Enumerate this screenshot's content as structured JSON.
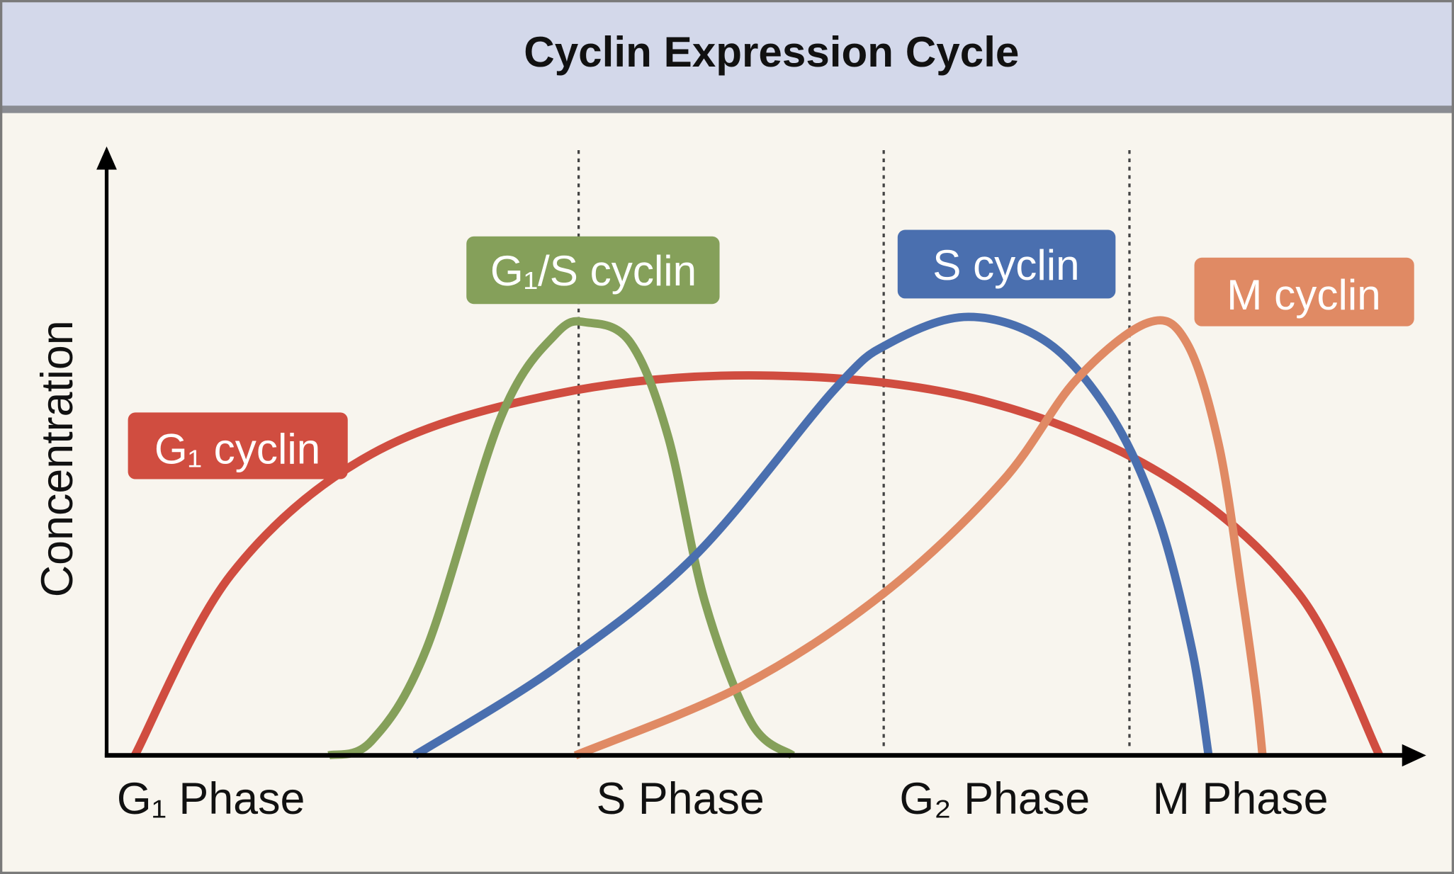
{
  "title": "Cyclin Expression Cycle",
  "colors": {
    "header_bg": "#d3d8ea",
    "body_bg": "#f8f5ee",
    "border": "#7a7a7a",
    "g1_cyclin": "#d04d40",
    "g1s_cyclin": "#85a05a",
    "s_cyclin": "#4a6faf",
    "m_cyclin": "#e08a64"
  },
  "chart_data": {
    "type": "line",
    "title": "Cyclin Expression Cycle",
    "ylabel": "Concentration",
    "xlabel": "",
    "x_tick_labels": [
      "G₁ Phase",
      "S Phase",
      "G₂ Phase",
      "M Phase"
    ],
    "phase_boundaries_dotted": true,
    "grid": false,
    "series": [
      {
        "name": "G₁ cyclin",
        "color": "#d04d40",
        "points": [
          [
            2.2,
            0
          ],
          [
            9.7,
            41.1
          ],
          [
            20.6,
            68.4
          ],
          [
            35.0,
            82.1
          ],
          [
            50.9,
            86.3
          ],
          [
            67.5,
            81.1
          ],
          [
            82.0,
            64.2
          ],
          [
            92.8,
            36.8
          ],
          [
            99.1,
            0
          ]
        ]
      },
      {
        "name": "G₁/S cyclin",
        "color": "#85a05a",
        "points": [
          [
            17.3,
            0
          ],
          [
            20.6,
            3.2
          ],
          [
            24.9,
            24.2
          ],
          [
            30.7,
            76.8
          ],
          [
            35.0,
            95.8
          ],
          [
            37.5,
            98.3
          ],
          [
            40.8,
            93.7
          ],
          [
            43.7,
            72.6
          ],
          [
            46.6,
            34.7
          ],
          [
            50.2,
            7.4
          ],
          [
            53.4,
            0
          ]
        ]
      },
      {
        "name": "S cyclin",
        "color": "#4a6faf",
        "points": [
          [
            24.0,
            0
          ],
          [
            35.0,
            20
          ],
          [
            45.8,
            45.3
          ],
          [
            56.7,
            83.2
          ],
          [
            61.0,
            93.7
          ],
          [
            67.1,
            99.6
          ],
          [
            73.3,
            93.7
          ],
          [
            78.3,
            76.8
          ],
          [
            81.9,
            53.7
          ],
          [
            84.5,
            24.2
          ],
          [
            85.8,
            0
          ]
        ]
      },
      {
        "name": "M cyclin",
        "color": "#e08a64",
        "points": [
          [
            36.5,
            0
          ],
          [
            49.5,
            15.8
          ],
          [
            60.5,
            36.8
          ],
          [
            69.7,
            62.1
          ],
          [
            75.5,
            85.3
          ],
          [
            81.1,
            98.3
          ],
          [
            84.1,
            93.7
          ],
          [
            86.6,
            70.5
          ],
          [
            88.4,
            36.8
          ],
          [
            89.5,
            13.7
          ],
          [
            90.0,
            0
          ]
        ]
      }
    ]
  }
}
